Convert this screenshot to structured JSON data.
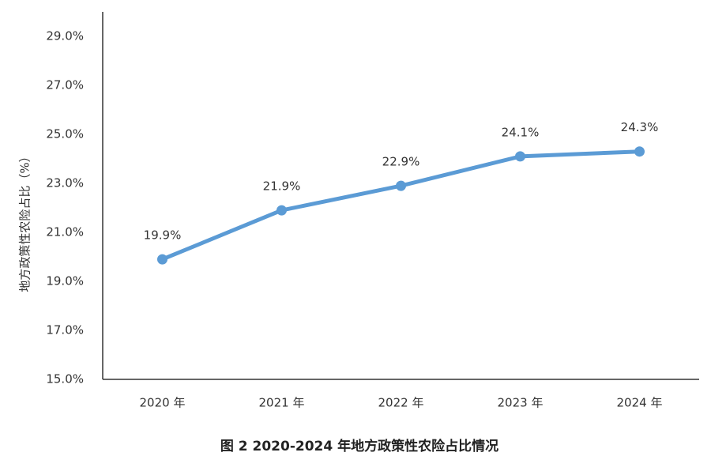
{
  "chart_data": {
    "type": "line",
    "title": "图 2  2020-2024 年地方政策性农险占比情况",
    "y_label": "地方政策性农险占比（%）",
    "categories": [
      "2020 年",
      "2021 年",
      "2022 年",
      "2023 年",
      "2024 年"
    ],
    "values": [
      19.9,
      21.9,
      22.9,
      24.1,
      24.3
    ],
    "value_labels": [
      "19.9%",
      "21.9%",
      "22.9%",
      "24.1%",
      "24.3%"
    ],
    "color": "#5b9bd5",
    "ylim": [
      15,
      30
    ],
    "yticks": [
      {
        "value": 15,
        "label": "15.0%"
      },
      {
        "value": 17,
        "label": "17.0%"
      },
      {
        "value": 19,
        "label": "19.0%"
      },
      {
        "value": 21,
        "label": "21.0%"
      },
      {
        "value": 23,
        "label": "23.0%"
      },
      {
        "value": 25,
        "label": "25.0%"
      },
      {
        "value": 27,
        "label": "27.0%"
      },
      {
        "value": 29,
        "label": "29.0%"
      }
    ],
    "grid": false
  }
}
